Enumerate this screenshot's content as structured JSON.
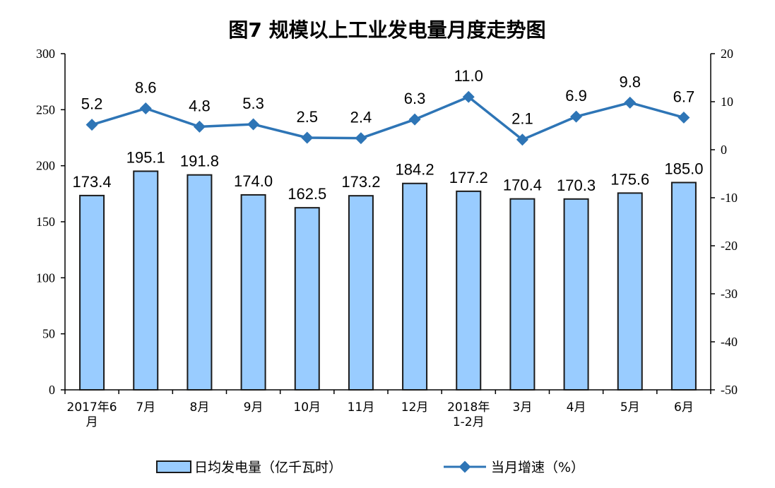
{
  "chart_data": {
    "type": "bar",
    "title": "图7  规模以上工业发电量月度走势图",
    "categories": [
      [
        "2017年6",
        "月"
      ],
      [
        "7月"
      ],
      [
        "8月"
      ],
      [
        "9月"
      ],
      [
        "10月"
      ],
      [
        "11月"
      ],
      [
        "12月"
      ],
      [
        "2018年",
        "1-2月"
      ],
      [
        "3月"
      ],
      [
        "4月"
      ],
      [
        "5月"
      ],
      [
        "6月"
      ]
    ],
    "series": [
      {
        "name": "日均发电量（亿千瓦时）",
        "type": "bar",
        "axis": "left",
        "color": "#99ccff",
        "values": [
          173.4,
          195.1,
          191.8,
          174.0,
          162.5,
          173.2,
          184.2,
          177.2,
          170.4,
          170.3,
          175.6,
          185.0
        ],
        "labels": [
          "173.4",
          "195.1",
          "191.8",
          "174.0",
          "162.5",
          "173.2",
          "184.2",
          "177.2",
          "170.4",
          "170.3",
          "175.6",
          "185.0"
        ]
      },
      {
        "name": "当月增速（%）",
        "type": "line",
        "axis": "right",
        "color": "#2e75b6",
        "values": [
          5.2,
          8.6,
          4.8,
          5.3,
          2.5,
          2.4,
          6.3,
          11.0,
          2.1,
          6.9,
          9.8,
          6.7
        ],
        "labels": [
          "5.2",
          "8.6",
          "4.8",
          "5.3",
          "2.5",
          "2.4",
          "6.3",
          "11.0",
          "2.1",
          "6.9",
          "9.8",
          "6.7"
        ]
      }
    ],
    "y_left": {
      "min": 0,
      "max": 300,
      "ticks": [
        "0",
        "50",
        "100",
        "150",
        "200",
        "250",
        "300"
      ]
    },
    "y_right": {
      "min": -50,
      "max": 20,
      "ticks": [
        "-50",
        "-40",
        "-30",
        "-20",
        "-10",
        "0",
        "10",
        "20"
      ]
    },
    "legend_position": "bottom",
    "grid": false
  }
}
